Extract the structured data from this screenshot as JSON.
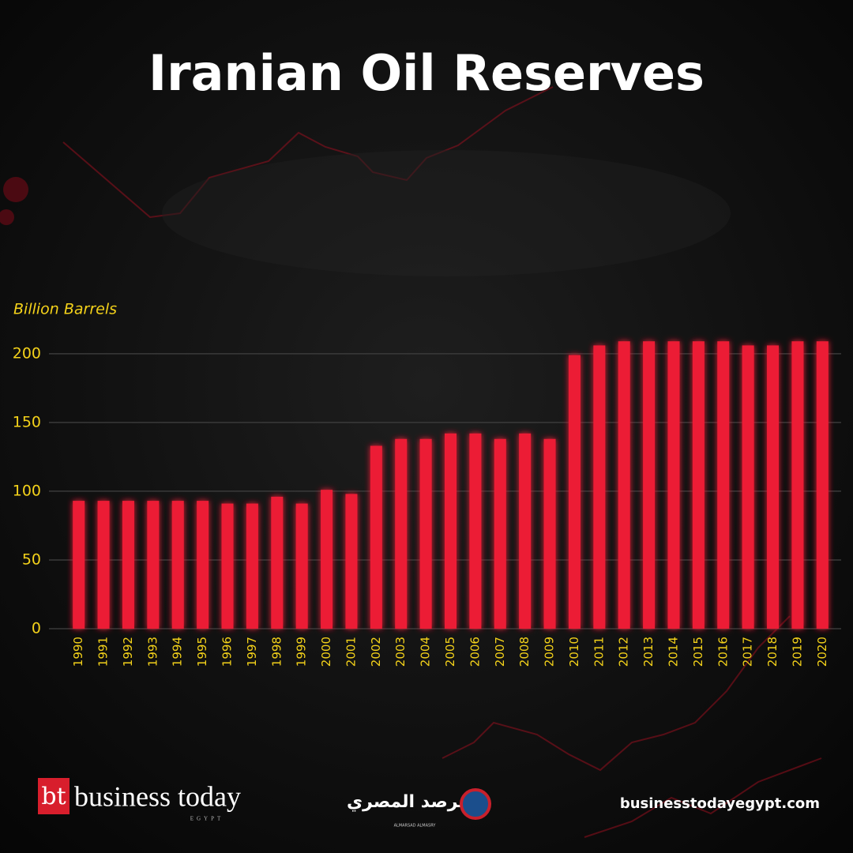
{
  "chart_data": {
    "type": "bar",
    "title": "Iranian Oil Reserves",
    "y_label": "Billion Barrels",
    "categories": [
      "1990",
      "1991",
      "1992",
      "1993",
      "1994",
      "1995",
      "1996",
      "1997",
      "1998",
      "1999",
      "2000",
      "2001",
      "2002",
      "2003",
      "2004",
      "2005",
      "2006",
      "2007",
      "2008",
      "2009",
      "2010",
      "2011",
      "2012",
      "2013",
      "2014",
      "2015",
      "2016",
      "2017",
      "2018",
      "2019",
      "2020"
    ],
    "values": [
      93,
      93,
      93,
      93,
      93,
      93,
      91,
      91,
      96,
      91,
      101,
      98,
      133,
      138,
      138,
      142,
      142,
      138,
      142,
      138,
      199,
      206,
      209,
      209,
      209,
      209,
      209,
      206,
      206,
      209,
      209
    ],
    "color": "#ec1f36",
    "ylim": [
      0,
      220
    ],
    "yticks": [
      0,
      50,
      100,
      150,
      200
    ],
    "grid": true
  },
  "footer": {
    "logo_mark": "bt",
    "brand": "business today",
    "brand_sub": "EGYPT",
    "partner": "المرصد المصري",
    "partner_sub": "ALMARSAD ALMASRY",
    "url": "businesstodayegypt.com"
  }
}
